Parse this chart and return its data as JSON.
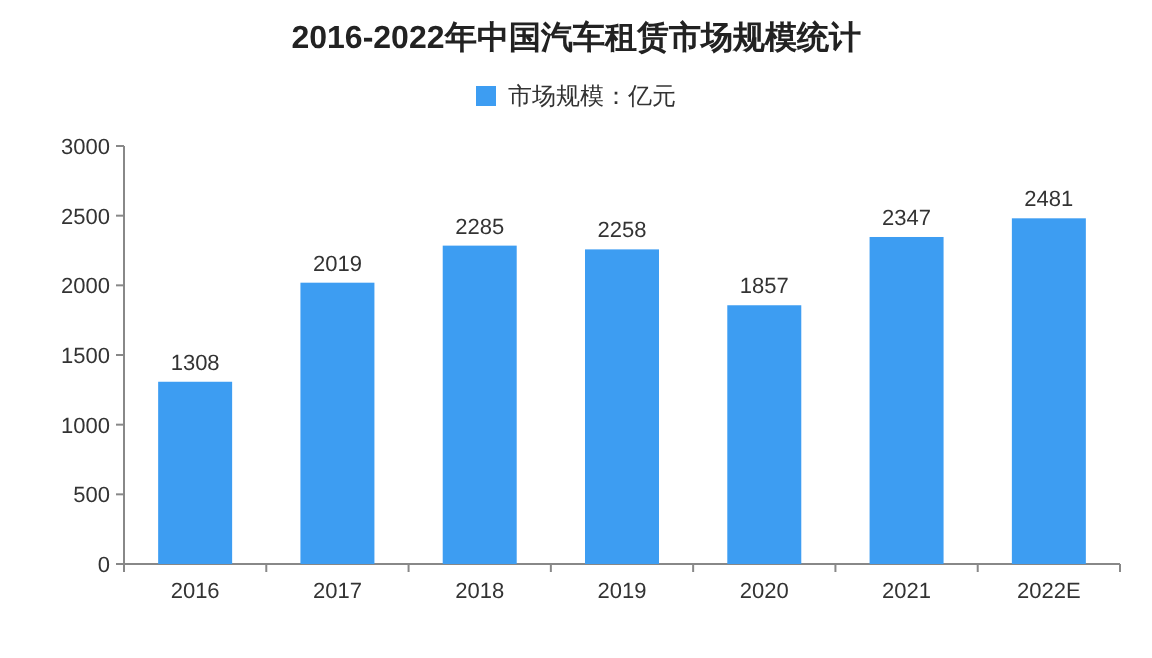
{
  "chart_data": {
    "type": "bar",
    "title": "2016-2022年中国汽车租赁市场规模统计",
    "categories": [
      "2016",
      "2017",
      "2018",
      "2019",
      "2020",
      "2021",
      "2022E"
    ],
    "series": [
      {
        "name": "市场规模：亿元",
        "color": "#3d9df2",
        "values": [
          1308,
          2019,
          2285,
          2258,
          1857,
          2347,
          2481
        ]
      }
    ],
    "ylim": [
      0,
      3000
    ],
    "yticks": [
      0,
      500,
      1000,
      1500,
      2000,
      2500,
      3000
    ],
    "data_labels": true,
    "legend": "top"
  }
}
